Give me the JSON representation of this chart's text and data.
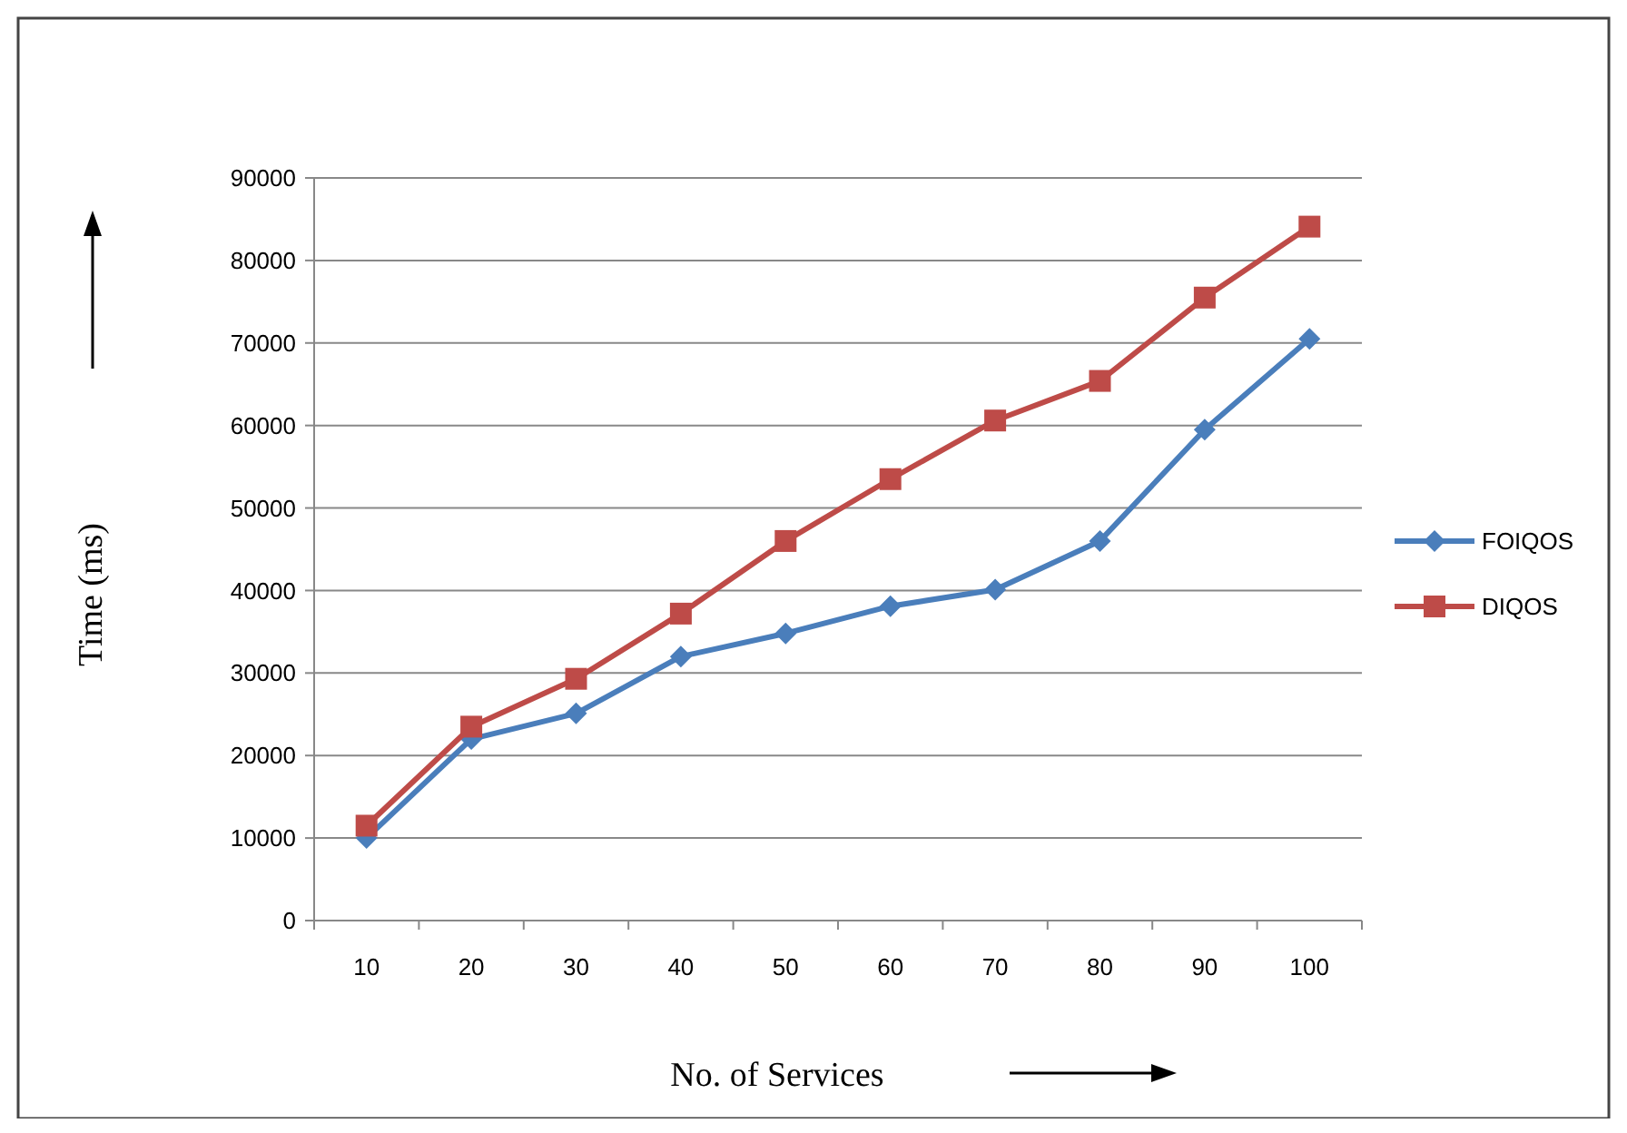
{
  "chart_data": {
    "type": "line",
    "xlabel": "No. of Services",
    "ylabel": "Time  (ms)",
    "categories": [
      "10",
      "20",
      "30",
      "40",
      "50",
      "60",
      "70",
      "80",
      "90",
      "100"
    ],
    "series": [
      {
        "name": "FOIQOS",
        "color": "#4a7ebb",
        "marker": "diamond",
        "values": [
          10000,
          22000,
          25100,
          32000,
          34800,
          38100,
          40100,
          46000,
          59500,
          70500
        ]
      },
      {
        "name": "DIQOS",
        "color": "#be4b48",
        "marker": "square",
        "values": [
          11500,
          23500,
          29300,
          37200,
          46000,
          53500,
          60600,
          65400,
          75500,
          84100
        ]
      }
    ],
    "ylim": [
      0,
      90000
    ],
    "yticks": [
      0,
      10000,
      20000,
      30000,
      40000,
      50000,
      60000,
      70000,
      80000,
      90000
    ],
    "grid": "y",
    "legend": "right"
  }
}
